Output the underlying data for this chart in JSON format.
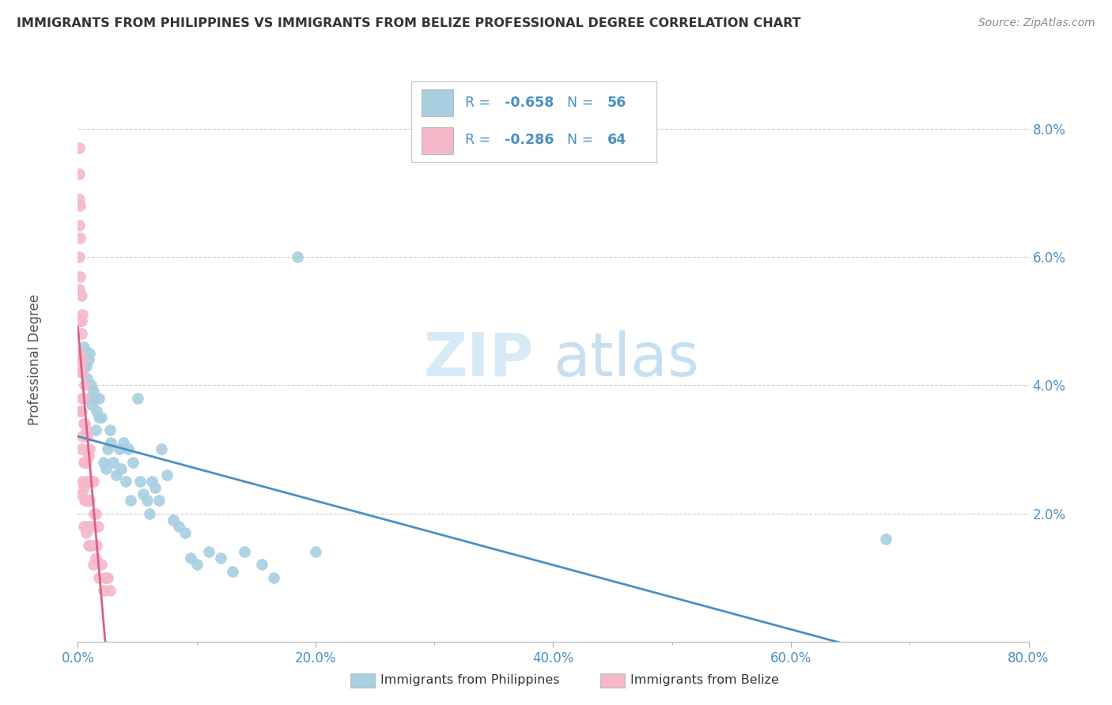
{
  "title": "IMMIGRANTS FROM PHILIPPINES VS IMMIGRANTS FROM BELIZE PROFESSIONAL DEGREE CORRELATION CHART",
  "source": "Source: ZipAtlas.com",
  "ylabel": "Professional Degree",
  "xlim": [
    0.0,
    0.8
  ],
  "ylim": [
    0.0,
    0.088
  ],
  "philippines_color": "#a8cfe0",
  "belize_color": "#f5b8c8",
  "philippines_line_color": "#4a90c4",
  "belize_line_color": "#d95f8a",
  "legend_label_philippines": "Immigrants from Philippines",
  "legend_label_belize": "Immigrants from Belize",
  "legend_text_color": "#4a90c4",
  "R_philippines": "-0.658",
  "N_philippines": "56",
  "R_belize": "-0.286",
  "N_belize": "64",
  "watermark_zip": "ZIP",
  "watermark_atlas": "atlas",
  "background_color": "#ffffff",
  "philippines_x": [
    0.004,
    0.004,
    0.005,
    0.006,
    0.007,
    0.008,
    0.009,
    0.01,
    0.01,
    0.011,
    0.012,
    0.013,
    0.014,
    0.015,
    0.016,
    0.018,
    0.018,
    0.02,
    0.022,
    0.024,
    0.025,
    0.027,
    0.028,
    0.03,
    0.032,
    0.035,
    0.036,
    0.038,
    0.04,
    0.042,
    0.044,
    0.046,
    0.05,
    0.052,
    0.055,
    0.058,
    0.06,
    0.062,
    0.065,
    0.068,
    0.07,
    0.075,
    0.08,
    0.085,
    0.09,
    0.095,
    0.1,
    0.11,
    0.12,
    0.13,
    0.14,
    0.155,
    0.165,
    0.185,
    0.2,
    0.68
  ],
  "philippines_y": [
    0.044,
    0.042,
    0.046,
    0.043,
    0.043,
    0.041,
    0.044,
    0.045,
    0.038,
    0.04,
    0.037,
    0.039,
    0.038,
    0.033,
    0.036,
    0.035,
    0.038,
    0.035,
    0.028,
    0.027,
    0.03,
    0.033,
    0.031,
    0.028,
    0.026,
    0.03,
    0.027,
    0.031,
    0.025,
    0.03,
    0.022,
    0.028,
    0.038,
    0.025,
    0.023,
    0.022,
    0.02,
    0.025,
    0.024,
    0.022,
    0.03,
    0.026,
    0.019,
    0.018,
    0.017,
    0.013,
    0.012,
    0.014,
    0.013,
    0.011,
    0.014,
    0.012,
    0.01,
    0.06,
    0.014,
    0.016
  ],
  "belize_x": [
    0.001,
    0.001,
    0.001,
    0.001,
    0.002,
    0.002,
    0.002,
    0.002,
    0.002,
    0.002,
    0.003,
    0.003,
    0.003,
    0.003,
    0.003,
    0.003,
    0.004,
    0.004,
    0.004,
    0.004,
    0.004,
    0.005,
    0.005,
    0.005,
    0.005,
    0.005,
    0.006,
    0.006,
    0.006,
    0.006,
    0.007,
    0.007,
    0.007,
    0.007,
    0.008,
    0.008,
    0.008,
    0.009,
    0.009,
    0.009,
    0.01,
    0.01,
    0.01,
    0.011,
    0.011,
    0.012,
    0.012,
    0.013,
    0.013,
    0.014,
    0.015,
    0.015,
    0.016,
    0.017,
    0.018,
    0.02,
    0.022,
    0.023,
    0.025,
    0.027,
    0.001,
    0.001,
    0.002,
    0.003
  ],
  "belize_y": [
    0.077,
    0.073,
    0.069,
    0.065,
    0.068,
    0.063,
    0.057,
    0.05,
    0.043,
    0.036,
    0.054,
    0.048,
    0.042,
    0.036,
    0.03,
    0.023,
    0.051,
    0.044,
    0.038,
    0.032,
    0.025,
    0.038,
    0.034,
    0.028,
    0.024,
    0.018,
    0.04,
    0.034,
    0.028,
    0.022,
    0.033,
    0.028,
    0.022,
    0.017,
    0.032,
    0.025,
    0.018,
    0.029,
    0.022,
    0.015,
    0.03,
    0.022,
    0.015,
    0.025,
    0.018,
    0.025,
    0.015,
    0.025,
    0.012,
    0.02,
    0.02,
    0.013,
    0.015,
    0.018,
    0.01,
    0.012,
    0.008,
    0.01,
    0.01,
    0.008,
    0.06,
    0.055,
    0.045,
    0.05
  ]
}
